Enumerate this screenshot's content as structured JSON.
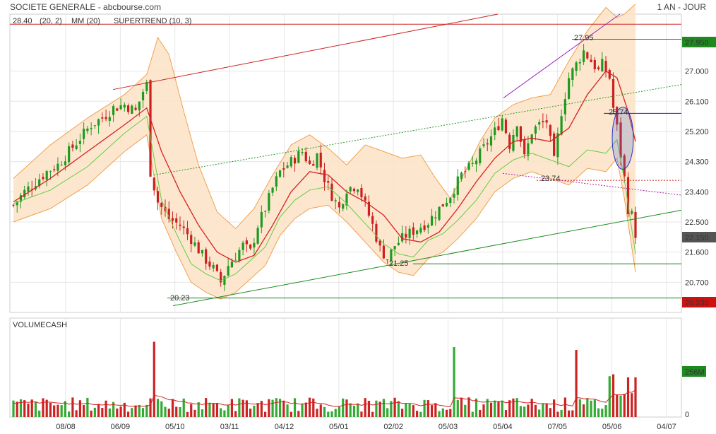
{
  "header": {
    "title": "SOCIETE GENERALE - abcbourse.com",
    "period": "1 AN - JOUR"
  },
  "chart_data": [
    {
      "type": "candlestick",
      "legend": [
        {
          "label": "28.40",
          "color": "#d04000"
        },
        {
          "label": "(20, 2)",
          "color": "#e8a050"
        },
        {
          "label": "MM (20)",
          "color": "#d62020"
        },
        {
          "label": "SUPERTREND (10, 3)",
          "color": "#f0a0a0"
        }
      ],
      "y_ticks": [
        "27.000",
        "26.100",
        "25.200",
        "24.300",
        "23.400",
        "22.500",
        "21.600",
        "20.700"
      ],
      "ylim": [
        19.8,
        28.7
      ],
      "x_ticks": [
        "08/08",
        "06/09",
        "05/10",
        "03/11",
        "04/12",
        "05/01",
        "02/02",
        "05/03",
        "05/04",
        "07/05",
        "05/06",
        "04/07"
      ],
      "price_labels": [
        {
          "label": "27.950",
          "value": 27.95,
          "color": "#1f8a1f"
        },
        {
          "label": "22.150",
          "value": 22.15,
          "color": "#555555"
        },
        {
          "label": "20.230",
          "value": 20.23,
          "color": "#cc1111"
        }
      ],
      "annotations": [
        {
          "text": "27.95",
          "color": "#cc2222"
        },
        {
          "text": "25.74",
          "color": "#2222cc"
        },
        {
          "text": "23.74",
          "color": "#cc2222"
        },
        {
          "text": "21.25",
          "color": "#1f8a1f"
        },
        {
          "text": "20.23",
          "color": "#1f8a1f"
        }
      ],
      "close_path": [
        [
          0,
          23.0
        ],
        [
          3,
          23.4
        ],
        [
          6,
          23.7
        ],
        [
          9,
          24.0
        ],
        [
          12,
          24.2
        ],
        [
          15,
          24.6
        ],
        [
          18,
          25.0
        ],
        [
          21,
          25.4
        ],
        [
          24,
          25.6
        ],
        [
          27,
          25.9
        ],
        [
          30,
          26.0
        ],
        [
          33,
          25.8
        ],
        [
          35,
          26.4
        ],
        [
          36,
          26.6
        ],
        [
          37,
          24.0
        ],
        [
          39,
          23.1
        ],
        [
          42,
          22.6
        ],
        [
          45,
          22.4
        ],
        [
          48,
          22.0
        ],
        [
          51,
          21.5
        ],
        [
          54,
          21.1
        ],
        [
          56,
          20.7
        ],
        [
          58,
          21.2
        ],
        [
          60,
          21.5
        ],
        [
          62,
          21.8
        ],
        [
          64,
          21.6
        ],
        [
          66,
          22.4
        ],
        [
          68,
          22.9
        ],
        [
          70,
          23.5
        ],
        [
          72,
          24.0
        ],
        [
          75,
          24.3
        ],
        [
          78,
          24.6
        ],
        [
          80,
          24.2
        ],
        [
          82,
          24.5
        ],
        [
          84,
          23.8
        ],
        [
          86,
          23.3
        ],
        [
          88,
          22.9
        ],
        [
          90,
          23.5
        ],
        [
          93,
          23.6
        ],
        [
          95,
          23.0
        ],
        [
          97,
          22.4
        ],
        [
          99,
          21.7
        ],
        [
          101,
          21.4
        ],
        [
          103,
          21.8
        ],
        [
          106,
          22.1
        ],
        [
          109,
          22.3
        ],
        [
          112,
          22.5
        ],
        [
          115,
          22.9
        ],
        [
          118,
          23.3
        ],
        [
          121,
          23.9
        ],
        [
          124,
          24.2
        ],
        [
          127,
          24.7
        ],
        [
          130,
          25.2
        ],
        [
          132,
          25.6
        ],
        [
          134,
          24.8
        ],
        [
          136,
          25.5
        ],
        [
          138,
          24.4
        ],
        [
          140,
          25.2
        ],
        [
          142,
          25.4
        ],
        [
          144,
          25.5
        ],
        [
          146,
          24.3
        ],
        [
          148,
          25.8
        ],
        [
          150,
          26.8
        ],
        [
          152,
          27.2
        ],
        [
          154,
          27.6
        ],
        [
          156,
          27.3
        ],
        [
          158,
          27.0
        ],
        [
          159,
          27.2
        ],
        [
          161,
          26.8
        ],
        [
          162,
          25.9
        ],
        [
          163,
          25.3
        ],
        [
          164,
          24.5
        ],
        [
          165,
          23.8
        ],
        [
          166,
          22.9
        ],
        [
          167,
          22.7
        ],
        [
          168,
          22.15
        ]
      ],
      "ma20_path": [
        [
          0,
          23.1
        ],
        [
          10,
          23.8
        ],
        [
          20,
          24.6
        ],
        [
          30,
          25.4
        ],
        [
          36,
          25.9
        ],
        [
          40,
          24.6
        ],
        [
          45,
          23.4
        ],
        [
          50,
          22.4
        ],
        [
          55,
          21.6
        ],
        [
          60,
          21.3
        ],
        [
          65,
          21.5
        ],
        [
          70,
          22.4
        ],
        [
          75,
          23.4
        ],
        [
          80,
          24.0
        ],
        [
          85,
          23.9
        ],
        [
          90,
          23.4
        ],
        [
          95,
          23.1
        ],
        [
          100,
          22.7
        ],
        [
          105,
          22.0
        ],
        [
          110,
          21.9
        ],
        [
          115,
          22.2
        ],
        [
          120,
          22.9
        ],
        [
          125,
          23.7
        ],
        [
          130,
          24.4
        ],
        [
          135,
          24.9
        ],
        [
          140,
          25.0
        ],
        [
          145,
          24.9
        ],
        [
          150,
          25.3
        ],
        [
          155,
          26.3
        ],
        [
          160,
          27.0
        ],
        [
          163,
          26.8
        ],
        [
          166,
          25.8
        ],
        [
          168,
          24.9
        ]
      ],
      "boll_upper": [
        [
          0,
          23.8
        ],
        [
          10,
          24.8
        ],
        [
          20,
          25.6
        ],
        [
          30,
          26.3
        ],
        [
          36,
          26.9
        ],
        [
          39,
          28.0
        ],
        [
          42,
          27.5
        ],
        [
          46,
          25.8
        ],
        [
          50,
          24.2
        ],
        [
          55,
          22.8
        ],
        [
          60,
          22.3
        ],
        [
          65,
          22.9
        ],
        [
          70,
          23.9
        ],
        [
          75,
          24.8
        ],
        [
          80,
          25.1
        ],
        [
          85,
          24.7
        ],
        [
          90,
          24.2
        ],
        [
          95,
          24.8
        ],
        [
          100,
          24.6
        ],
        [
          105,
          24.4
        ],
        [
          110,
          24.5
        ],
        [
          114,
          23.8
        ],
        [
          118,
          23.2
        ],
        [
          122,
          24.0
        ],
        [
          126,
          24.9
        ],
        [
          130,
          25.6
        ],
        [
          135,
          26.0
        ],
        [
          140,
          26.2
        ],
        [
          145,
          26.3
        ],
        [
          150,
          27.3
        ],
        [
          155,
          28.2
        ],
        [
          160,
          28.9
        ],
        [
          163,
          28.6
        ],
        [
          165,
          28.7
        ],
        [
          168,
          29.0
        ]
      ],
      "boll_lower": [
        [
          0,
          22.5
        ],
        [
          10,
          22.9
        ],
        [
          20,
          23.6
        ],
        [
          30,
          24.6
        ],
        [
          36,
          25.1
        ],
        [
          40,
          22.6
        ],
        [
          44,
          21.6
        ],
        [
          48,
          20.7
        ],
        [
          52,
          20.4
        ],
        [
          56,
          20.2
        ],
        [
          60,
          20.4
        ],
        [
          64,
          20.8
        ],
        [
          68,
          21.2
        ],
        [
          72,
          22.1
        ],
        [
          76,
          22.6
        ],
        [
          80,
          22.9
        ],
        [
          85,
          23.0
        ],
        [
          90,
          22.5
        ],
        [
          95,
          21.9
        ],
        [
          100,
          21.3
        ],
        [
          104,
          21.0
        ],
        [
          108,
          20.9
        ],
        [
          112,
          21.4
        ],
        [
          116,
          21.6
        ],
        [
          120,
          22.0
        ],
        [
          125,
          22.6
        ],
        [
          130,
          23.4
        ],
        [
          135,
          23.8
        ],
        [
          140,
          24.0
        ],
        [
          145,
          23.8
        ],
        [
          150,
          23.6
        ],
        [
          155,
          24.1
        ],
        [
          160,
          24.0
        ],
        [
          163,
          24.4
        ],
        [
          165,
          23.2
        ],
        [
          168,
          21.0
        ]
      ],
      "volume": {
        "label": "VOLUMECASH",
        "last_label": "256M",
        "last_color": "#1f8a1f",
        "y_ticks": [
          "0"
        ],
        "spike_days": [
          38,
          119,
          152,
          168
        ]
      }
    }
  ]
}
